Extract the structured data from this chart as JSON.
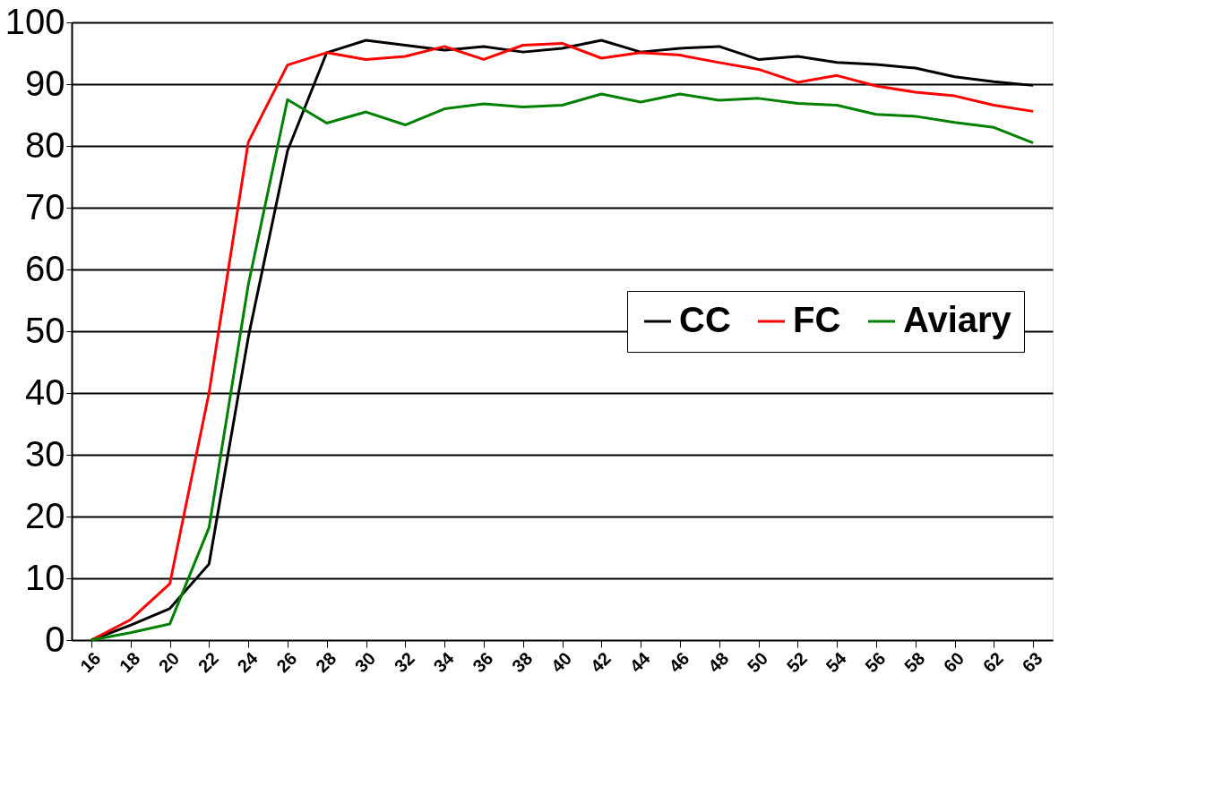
{
  "chart_data": {
    "type": "line",
    "categories": [
      "16",
      "18",
      "20",
      "22",
      "24",
      "26",
      "28",
      "30",
      "32",
      "34",
      "36",
      "38",
      "40",
      "42",
      "44",
      "46",
      "48",
      "50",
      "52",
      "54",
      "56",
      "58",
      "60",
      "62",
      "63"
    ],
    "series": [
      {
        "name": "CC",
        "color": "#000000",
        "values": [
          0,
          2.4,
          5.1,
          12.3,
          49,
          79.2,
          95.1,
          97.1,
          96.3,
          95.5,
          96.1,
          95.2,
          95.8,
          97.1,
          95.2,
          95.8,
          96.1,
          94.0,
          94.5,
          93.5,
          93.2,
          92.6,
          91.2,
          90.4,
          89.8
        ]
      },
      {
        "name": "FC",
        "color": "#ff0000",
        "values": [
          0,
          3.3,
          9.1,
          40,
          80.6,
          93.1,
          95.1,
          94.0,
          94.5,
          96.1,
          94.0,
          96.3,
          96.6,
          94.2,
          95.1,
          94.7,
          93.5,
          92.4,
          90.3,
          91.4,
          89.7,
          88.7,
          88.1,
          86.6,
          85.6
        ]
      },
      {
        "name": "Aviary",
        "color": "#008000",
        "values": [
          0,
          1.2,
          2.6,
          18.2,
          57.5,
          87.5,
          83.7,
          85.5,
          83.4,
          86.0,
          86.8,
          86.3,
          86.6,
          88.4,
          87.1,
          88.4,
          87.4,
          87.7,
          86.9,
          86.6,
          85.1,
          84.8,
          83.8,
          83.0,
          80.5
        ]
      }
    ],
    "ylim": [
      0,
      100
    ],
    "yticks": [
      0,
      10,
      20,
      30,
      40,
      50,
      60,
      70,
      80,
      90,
      100
    ],
    "grid": "y",
    "legend": "right",
    "marker": "none",
    "line_style": "solid"
  }
}
